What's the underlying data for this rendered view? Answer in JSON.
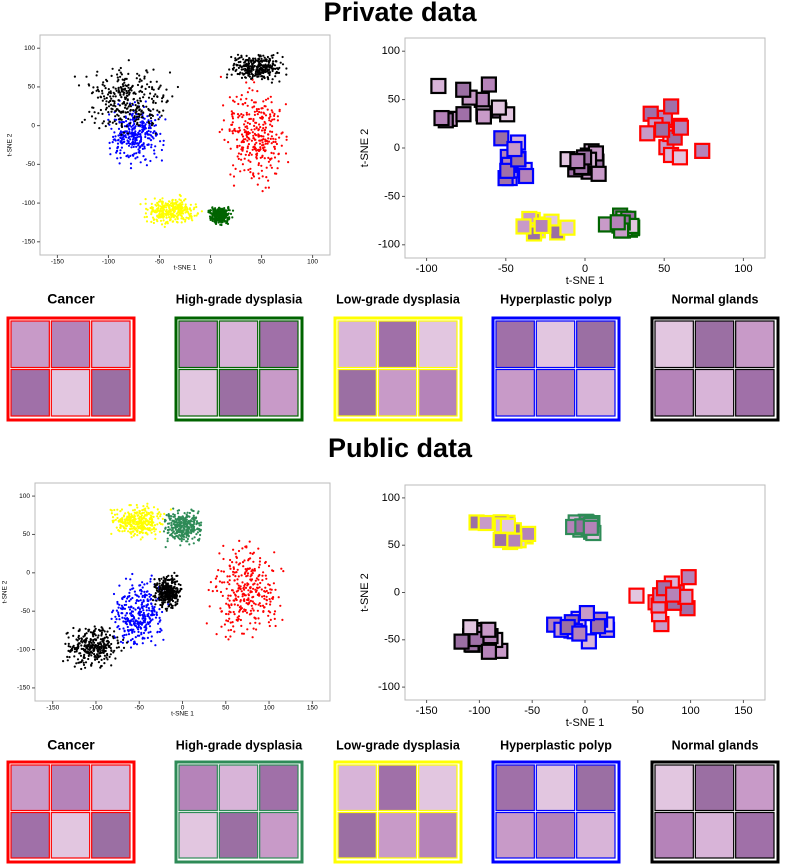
{
  "sections": [
    {
      "title": "Private data",
      "panels": [
        {
          "xlabel": "t-SNE 1",
          "ylabel": "t-SNE 2",
          "xticks": [
            -150,
            -100,
            -50,
            0,
            50,
            100
          ],
          "yticks": [
            -150,
            -100,
            -50,
            0,
            50,
            100
          ]
        },
        {
          "xlabel": "t-SNE 1",
          "ylabel": "t-SNE 2",
          "xticks": [
            -100,
            -50,
            0,
            50,
            100
          ],
          "yticks": [
            -100,
            -50,
            0,
            50,
            100
          ]
        }
      ],
      "classes": [
        {
          "name": "Cancer",
          "color": "#ff0000"
        },
        {
          "name": "High-grade dysplasia",
          "color": "#006400"
        },
        {
          "name": "Low-grade dysplasia",
          "color": "#ffff00"
        },
        {
          "name": "Hyperplastic polyp",
          "color": "#0000ff"
        },
        {
          "name": "Normal glands",
          "color": "#000000"
        }
      ]
    },
    {
      "title": "Public data",
      "panels": [
        {
          "xlabel": "t-SNE 1",
          "ylabel": "t-SNE 2",
          "xticks": [
            -150,
            -100,
            -50,
            0,
            50,
            100,
            150
          ],
          "yticks": [
            -150,
            -100,
            -50,
            0,
            50,
            100
          ]
        },
        {
          "xlabel": "t-SNE 1",
          "ylabel": "t-SNE 2",
          "xticks": [
            -150,
            -100,
            -50,
            0,
            50,
            100,
            150
          ],
          "yticks": [
            -100,
            -50,
            0,
            50,
            100
          ]
        }
      ],
      "classes": [
        {
          "name": "Cancer",
          "color": "#ff0000"
        },
        {
          "name": "High-grade dysplasia",
          "color": "#2e8b57"
        },
        {
          "name": "Low-grade dysplasia",
          "color": "#ffff00"
        },
        {
          "name": "Hyperplastic polyp",
          "color": "#0000ff"
        },
        {
          "name": "Normal glands",
          "color": "#000000"
        }
      ]
    }
  ]
}
